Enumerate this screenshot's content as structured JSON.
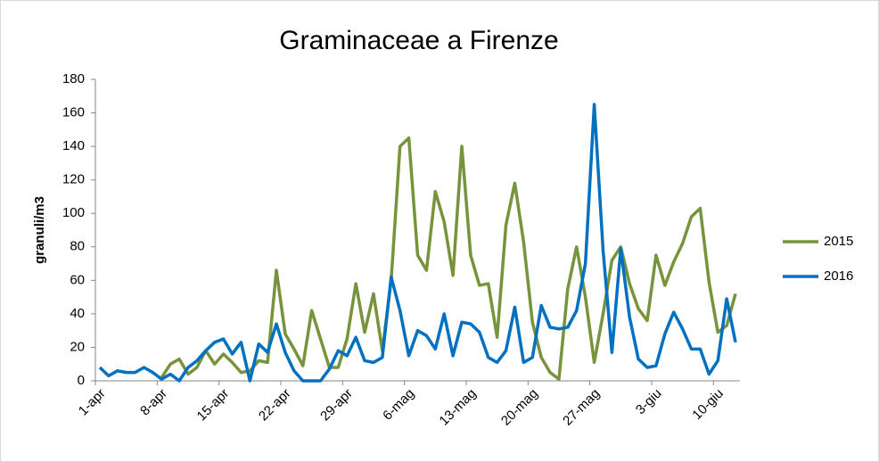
{
  "chart_data": {
    "type": "line",
    "title": "Graminaceae a Firenze",
    "y_label": "granuli/m3",
    "categories": [
      "1-apr",
      null,
      null,
      null,
      null,
      null,
      null,
      "8-apr",
      null,
      null,
      null,
      null,
      null,
      null,
      "15-apr",
      null,
      null,
      null,
      null,
      null,
      null,
      "22-apr",
      null,
      null,
      null,
      null,
      null,
      null,
      "29-apr",
      null,
      null,
      null,
      null,
      null,
      null,
      "6-mag",
      null,
      null,
      null,
      null,
      null,
      null,
      "13-mag",
      null,
      null,
      null,
      null,
      null,
      null,
      "20-mag",
      null,
      null,
      null,
      null,
      null,
      null,
      "27-mag",
      null,
      null,
      null,
      null,
      null,
      null,
      "3-giu",
      null,
      null,
      null,
      null,
      null,
      null,
      "10-giu",
      null,
      null
    ],
    "series": [
      {
        "name": "2015",
        "color": "#77933c",
        "values": [
          null,
          null,
          null,
          null,
          null,
          null,
          null,
          2,
          10,
          13,
          4,
          8,
          18,
          10,
          16,
          11,
          5,
          6,
          12,
          11,
          66,
          28,
          19,
          9,
          42,
          25,
          8,
          8,
          25,
          58,
          29,
          52,
          18,
          60,
          140,
          145,
          75,
          66,
          113,
          95,
          63,
          140,
          75,
          57,
          58,
          26,
          93,
          118,
          83,
          35,
          14,
          5,
          1,
          55,
          80,
          50,
          11,
          40,
          72,
          80,
          58,
          43,
          36,
          75,
          57,
          71,
          82,
          98,
          103,
          59,
          29,
          33,
          52
        ]
      },
      {
        "name": "2016",
        "color": "#0070c0",
        "values": [
          8,
          3,
          6,
          5,
          5,
          8,
          5,
          1,
          4,
          0,
          8,
          12,
          18,
          23,
          25,
          16,
          23,
          0,
          22,
          17,
          34,
          17,
          6,
          0,
          0,
          0,
          7,
          18,
          15,
          26,
          12,
          11,
          14,
          62,
          42,
          15,
          30,
          27,
          19,
          40,
          15,
          35,
          34,
          29,
          14,
          11,
          18,
          44,
          11,
          14,
          45,
          32,
          31,
          32,
          42,
          70,
          165,
          78,
          17,
          79,
          38,
          13,
          8,
          9,
          28,
          41,
          31,
          19,
          19,
          4,
          12,
          49,
          23
        ]
      }
    ],
    "ylim": [
      0,
      180
    ],
    "yticks": [
      0,
      20,
      40,
      60,
      80,
      100,
      120,
      140,
      160,
      180
    ],
    "grid": false,
    "legend": "right"
  }
}
